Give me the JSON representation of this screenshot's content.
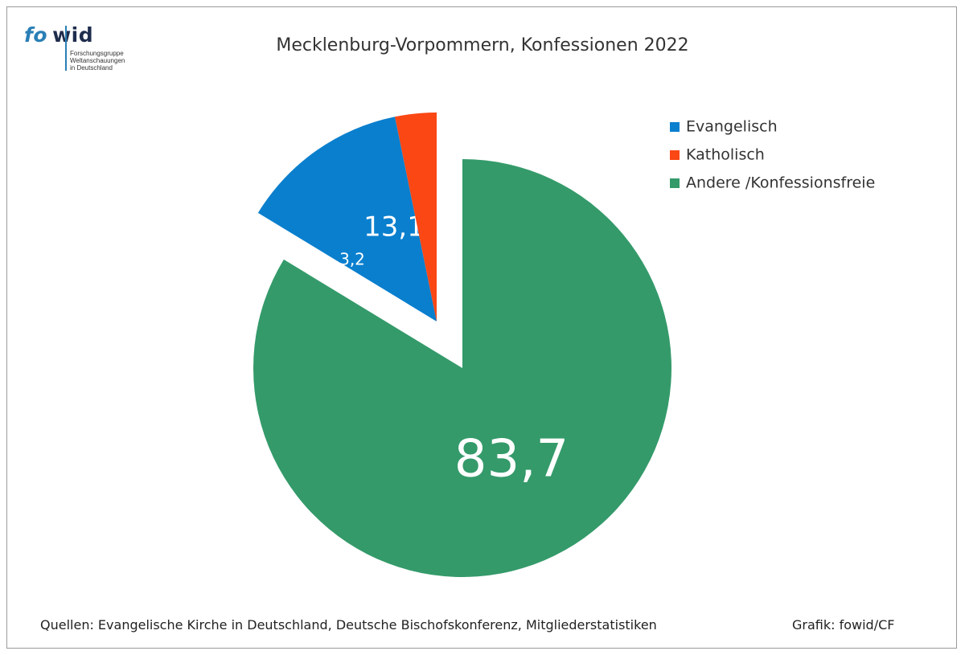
{
  "logo": {
    "part1": "fo",
    "part2": "wid",
    "subtitle": [
      "Forschungsgruppe",
      "Weltanschauungen",
      "in Deutschland"
    ]
  },
  "title": "Mecklenburg-Vorpommern, Konfessionen 2022",
  "source": "Quellen: Evangelische Kirche in Deutschland, Deutsche Bischofskonferenz, Mitgliederstatistiken",
  "credit": "Grafik: fowid/CF",
  "chart_data": {
    "type": "pie",
    "title": "Mecklenburg-Vorpommern, Konfessionen 2022",
    "legend_position": "top-right",
    "slices": [
      {
        "label": "Andere /Konfessionsfreie",
        "value": 83.7,
        "display": "83,7",
        "color": "#349a6a",
        "exploded": false
      },
      {
        "label": "Evangelisch",
        "value": 13.1,
        "display": "13,1",
        "color": "#0a7fce",
        "exploded": true
      },
      {
        "label": "Katholisch",
        "value": 3.2,
        "display": "3,2",
        "color": "#fa4714",
        "exploded": true
      }
    ],
    "legend": [
      "Evangelisch",
      "Katholisch",
      "Andere /Konfessionsfreie"
    ]
  }
}
